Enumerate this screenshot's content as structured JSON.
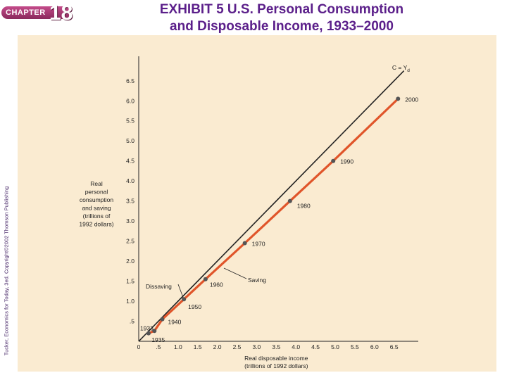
{
  "header": {
    "chapter_label": "CHAPTER",
    "chapter_number": "18",
    "title_line1": "EXHIBIT 5 U.S. Personal Consumption",
    "title_line2": "and Disposable Income, 1933–2000"
  },
  "credit": "Tucker, Economics for Today, 3ed. Copyright©2002 Thomson Publishing",
  "chart_data": {
    "type": "line",
    "title": "",
    "xlabel_line1": "Real disposable income",
    "xlabel_line2": "(trillions of 1992 dollars)",
    "ylabel_lines": [
      "Real",
      "personal",
      "consumption",
      "and saving",
      "(trillions of",
      "1992 dollars)"
    ],
    "xlim": [
      0,
      6.9
    ],
    "ylim": [
      0,
      6.9
    ],
    "x_ticks": [
      {
        "value": 0,
        "label": "0"
      },
      {
        "value": 0.5,
        "label": ".5"
      },
      {
        "value": 1.0,
        "label": "1.0"
      },
      {
        "value": 1.5,
        "label": "1.5"
      },
      {
        "value": 2.0,
        "label": "2.0"
      },
      {
        "value": 2.5,
        "label": "2.5"
      },
      {
        "value": 3.0,
        "label": "3.0"
      },
      {
        "value": 3.5,
        "label": "3.5"
      },
      {
        "value": 4.0,
        "label": "4.0"
      },
      {
        "value": 4.5,
        "label": "4.5"
      },
      {
        "value": 5.0,
        "label": "5.0"
      },
      {
        "value": 5.5,
        "label": "5.5"
      },
      {
        "value": 6.0,
        "label": "6.0"
      },
      {
        "value": 6.5,
        "label": "6.5"
      }
    ],
    "y_ticks": [
      {
        "value": 0.5,
        "label": ".5"
      },
      {
        "value": 1.0,
        "label": "1.0"
      },
      {
        "value": 1.5,
        "label": "1.5"
      },
      {
        "value": 2.0,
        "label": "2.0"
      },
      {
        "value": 2.5,
        "label": "2.5"
      },
      {
        "value": 3.0,
        "label": "3.0"
      },
      {
        "value": 3.5,
        "label": "3.5"
      },
      {
        "value": 4.0,
        "label": "4.0"
      },
      {
        "value": 4.5,
        "label": "4.5"
      },
      {
        "value": 5.0,
        "label": "5.0"
      },
      {
        "value": 5.5,
        "label": "5.5"
      },
      {
        "value": 6.0,
        "label": "6.0"
      },
      {
        "value": 6.5,
        "label": "6.5"
      }
    ],
    "reference_line": {
      "label": "C = Y",
      "label_subscript": "d",
      "color": "#222222"
    },
    "series": [
      {
        "color": "#e0552a",
        "point_color": "#555555",
        "points": [
          {
            "x": 0.25,
            "y": 0.2,
            "label": "1933"
          },
          {
            "x": 0.4,
            "y": 0.26,
            "label": "1935"
          },
          {
            "x": 0.6,
            "y": 0.55,
            "label": "1940"
          },
          {
            "x": 1.15,
            "y": 1.05,
            "label": "1950"
          },
          {
            "x": 1.7,
            "y": 1.55,
            "label": "1960"
          },
          {
            "x": 2.7,
            "y": 2.45,
            "label": "1970"
          },
          {
            "x": 3.85,
            "y": 3.5,
            "label": "1980"
          },
          {
            "x": 4.95,
            "y": 4.5,
            "label": "1990"
          },
          {
            "x": 6.6,
            "y": 6.05,
            "label": "2000"
          }
        ]
      }
    ],
    "annotations": {
      "dissaving": "Dissaving",
      "saving": "Saving"
    },
    "grid": false
  }
}
